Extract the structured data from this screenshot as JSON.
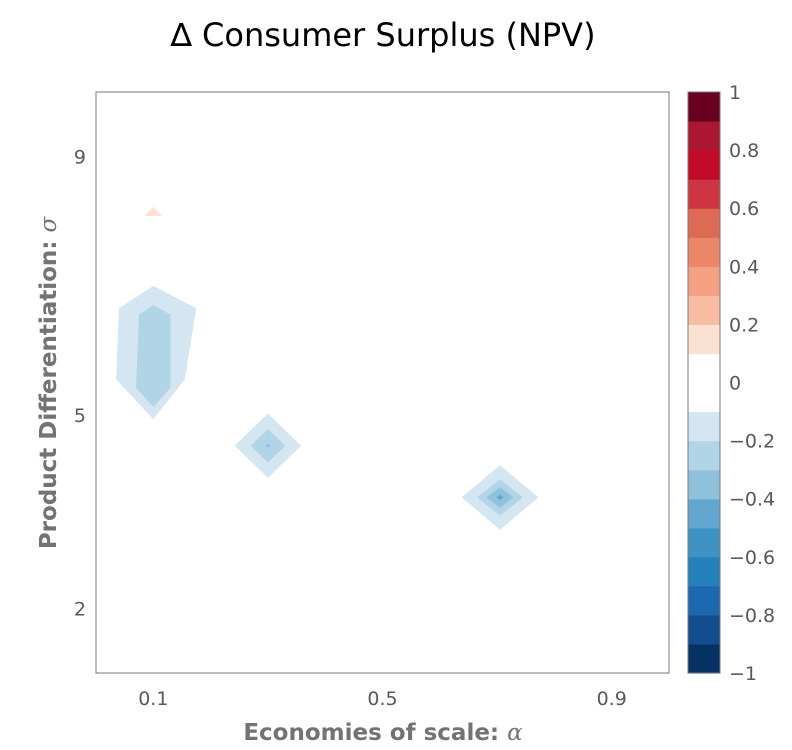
{
  "chart_data": {
    "type": "contour",
    "title": "∆ Consumer Surplus (NPV)",
    "xlabel": {
      "text": "Economies of scale: ",
      "symbol": "α"
    },
    "ylabel": {
      "text": "Product Differentiation: ",
      "symbol": "σ"
    },
    "xlim": [
      0.0,
      1.0
    ],
    "ylim": [
      1.0,
      10.0
    ],
    "x_ticks": [
      {
        "value": 0.1,
        "label": "0.1"
      },
      {
        "value": 0.5,
        "label": "0.5"
      },
      {
        "value": 0.9,
        "label": "0.9"
      }
    ],
    "y_ticks": [
      {
        "value": 2,
        "label": "2"
      },
      {
        "value": 5,
        "label": "5"
      },
      {
        "value": 9,
        "label": "9"
      }
    ],
    "colorbar": {
      "range": [
        -1,
        1
      ],
      "tick_labels": [
        {
          "value": 1,
          "label": "1"
        },
        {
          "value": 0.8,
          "label": "0.8"
        },
        {
          "value": 0.6,
          "label": "0.6"
        },
        {
          "value": 0.4,
          "label": "0.4"
        },
        {
          "value": 0.2,
          "label": "0.2"
        },
        {
          "value": 0,
          "label": "0"
        },
        {
          "value": -0.2,
          "label": "−0.2"
        },
        {
          "value": -0.4,
          "label": "−0.4"
        },
        {
          "value": -0.6,
          "label": "−0.6"
        },
        {
          "value": -0.8,
          "label": "−0.8"
        },
        {
          "value": -1,
          "label": "−1"
        }
      ],
      "bands": [
        {
          "from": -1.0,
          "to": -0.9,
          "color": "#063264"
        },
        {
          "from": -0.9,
          "to": -0.8,
          "color": "#134c8f"
        },
        {
          "from": -0.8,
          "to": -0.7,
          "color": "#1b68ae"
        },
        {
          "from": -0.7,
          "to": -0.6,
          "color": "#2480ba"
        },
        {
          "from": -0.6,
          "to": -0.5,
          "color": "#3f93c3"
        },
        {
          "from": -0.5,
          "to": -0.4,
          "color": "#62a6cf"
        },
        {
          "from": -0.4,
          "to": -0.3,
          "color": "#8fc0dc"
        },
        {
          "from": -0.3,
          "to": -0.2,
          "color": "#b1d4e7"
        },
        {
          "from": -0.2,
          "to": -0.1,
          "color": "#d4e6f1"
        },
        {
          "from": -0.1,
          "to": 0.1,
          "color": "#ffffff"
        },
        {
          "from": 0.1,
          "to": 0.2,
          "color": "#fbe1d4"
        },
        {
          "from": 0.2,
          "to": 0.3,
          "color": "#f7bca1"
        },
        {
          "from": 0.3,
          "to": 0.4,
          "color": "#f4a183"
        },
        {
          "from": 0.4,
          "to": 0.5,
          "color": "#eb8769"
        },
        {
          "from": 0.5,
          "to": 0.6,
          "color": "#dc6a55"
        },
        {
          "from": 0.6,
          "to": 0.7,
          "color": "#ce3543"
        },
        {
          "from": 0.7,
          "to": 0.8,
          "color": "#c10a27"
        },
        {
          "from": 0.8,
          "to": 0.9,
          "color": "#a91731"
        },
        {
          "from": 0.9,
          "to": 1.0,
          "color": "#6a0020"
        }
      ]
    },
    "regions": [
      {
        "name": "positive-patch",
        "level": 0.15,
        "color": "#fbe1d4",
        "points": [
          [
            0.085,
            8.08
          ],
          [
            0.1,
            8.22
          ],
          [
            0.115,
            8.08
          ]
        ]
      },
      {
        "name": "left-outer",
        "level": -0.15,
        "color": "#d4e6f1",
        "points": [
          [
            0.1,
            7.0
          ],
          [
            0.175,
            6.65
          ],
          [
            0.155,
            5.55
          ],
          [
            0.1,
            4.93
          ],
          [
            0.035,
            5.55
          ],
          [
            0.04,
            6.65
          ]
        ]
      },
      {
        "name": "left-inner",
        "level": -0.25,
        "color": "#b1d4e7",
        "points": [
          [
            0.1,
            6.7
          ],
          [
            0.13,
            6.55
          ],
          [
            0.13,
            5.42
          ],
          [
            0.1,
            5.12
          ],
          [
            0.07,
            5.42
          ],
          [
            0.075,
            6.55
          ]
        ]
      },
      {
        "name": "mid-outer",
        "level": -0.15,
        "color": "#d4e6f1",
        "points": [
          [
            0.3,
            5.02
          ],
          [
            0.358,
            4.52
          ],
          [
            0.3,
            4.02
          ],
          [
            0.242,
            4.52
          ]
        ]
      },
      {
        "name": "mid-inner",
        "level": -0.25,
        "color": "#b1d4e7",
        "points": [
          [
            0.3,
            4.78
          ],
          [
            0.33,
            4.52
          ],
          [
            0.3,
            4.26
          ],
          [
            0.27,
            4.52
          ]
        ]
      },
      {
        "name": "mid-core",
        "level": -0.35,
        "color": "#8fc0dc",
        "points": [
          [
            0.3,
            4.55
          ],
          [
            0.304,
            4.52
          ],
          [
            0.3,
            4.49
          ],
          [
            0.296,
            4.52
          ]
        ]
      },
      {
        "name": "right-outer",
        "level": -0.15,
        "color": "#d4e6f1",
        "points": [
          [
            0.705,
            4.22
          ],
          [
            0.772,
            3.72
          ],
          [
            0.705,
            3.22
          ],
          [
            0.638,
            3.72
          ]
        ]
      },
      {
        "name": "right-mid",
        "level": -0.25,
        "color": "#b1d4e7",
        "points": [
          [
            0.705,
            4.0
          ],
          [
            0.745,
            3.72
          ],
          [
            0.705,
            3.44
          ],
          [
            0.665,
            3.72
          ]
        ]
      },
      {
        "name": "right-inner",
        "level": -0.35,
        "color": "#8fc0dc",
        "points": [
          [
            0.705,
            3.88
          ],
          [
            0.728,
            3.72
          ],
          [
            0.705,
            3.56
          ],
          [
            0.682,
            3.72
          ]
        ]
      },
      {
        "name": "right-core",
        "level": -0.45,
        "color": "#62a6cf",
        "points": [
          [
            0.705,
            3.76
          ],
          [
            0.711,
            3.72
          ],
          [
            0.705,
            3.68
          ],
          [
            0.699,
            3.72
          ]
        ]
      }
    ]
  }
}
